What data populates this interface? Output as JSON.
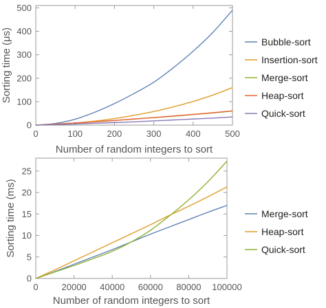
{
  "chart_data": [
    {
      "type": "line",
      "xlabel": "Number of random integers to sort",
      "ylabel": "Sorting time (μs)",
      "xlim": [
        0,
        500
      ],
      "ylim": [
        0,
        510
      ],
      "xticks": [
        "0",
        "100",
        "200",
        "300",
        "400",
        "500"
      ],
      "yticks": [
        "0",
        "100",
        "200",
        "300",
        "400",
        "500"
      ],
      "grid": false,
      "legend": "right",
      "x": [
        0,
        50,
        100,
        150,
        200,
        250,
        300,
        350,
        400,
        450,
        500
      ],
      "series": [
        {
          "name": "Bubble-sort",
          "color": "#5e81b5",
          "values": [
            0,
            7,
            25,
            55,
            92,
            135,
            183,
            245,
            315,
            395,
            490
          ]
        },
        {
          "name": "Insertion-sort",
          "color": "#e19c24",
          "values": [
            0,
            3,
            9,
            17,
            28,
            42,
            58,
            78,
            101,
            128,
            160
          ]
        },
        {
          "name": "Merge-sort",
          "color": "#8fb032",
          "values": [
            0,
            4,
            9,
            14,
            20,
            26,
            32,
            38,
            45,
            52,
            60
          ]
        },
        {
          "name": "Heap-sort",
          "color": "#eb6235",
          "values": [
            0,
            4,
            9,
            14,
            20,
            26,
            32,
            39,
            46,
            53,
            61
          ]
        },
        {
          "name": "Quick-sort",
          "color": "#8778b3",
          "values": [
            0,
            2,
            5,
            8,
            11,
            14,
            18,
            22,
            26,
            30,
            35
          ]
        }
      ]
    },
    {
      "type": "line",
      "xlabel": "Number of random integers to sort",
      "ylabel": "Sorting time (ms)",
      "xlim": [
        0,
        100000
      ],
      "ylim": [
        0,
        28
      ],
      "xticks": [
        "0",
        "20000",
        "40000",
        "60000",
        "80000",
        "100000"
      ],
      "yticks": [
        "0",
        "5",
        "10",
        "15",
        "20",
        "25"
      ],
      "grid": false,
      "legend": "right",
      "x": [
        0,
        10000,
        20000,
        30000,
        40000,
        50000,
        60000,
        70000,
        80000,
        90000,
        100000
      ],
      "series": [
        {
          "name": "Merge-sort",
          "color": "#5e81b5",
          "values": [
            0,
            1.6,
            3.3,
            5.0,
            6.7,
            8.5,
            10.3,
            12.0,
            13.7,
            15.4,
            17.0
          ]
        },
        {
          "name": "Heap-sort",
          "color": "#e19c24",
          "values": [
            0,
            2.0,
            4.1,
            6.2,
            8.3,
            10.4,
            12.5,
            14.7,
            16.8,
            19.0,
            21.3
          ]
        },
        {
          "name": "Quick-sort",
          "color": "#8fb032",
          "values": [
            0,
            1.5,
            3.0,
            4.6,
            6.3,
            8.5,
            11.2,
            14.6,
            18.3,
            22.5,
            27.3
          ]
        }
      ]
    }
  ]
}
